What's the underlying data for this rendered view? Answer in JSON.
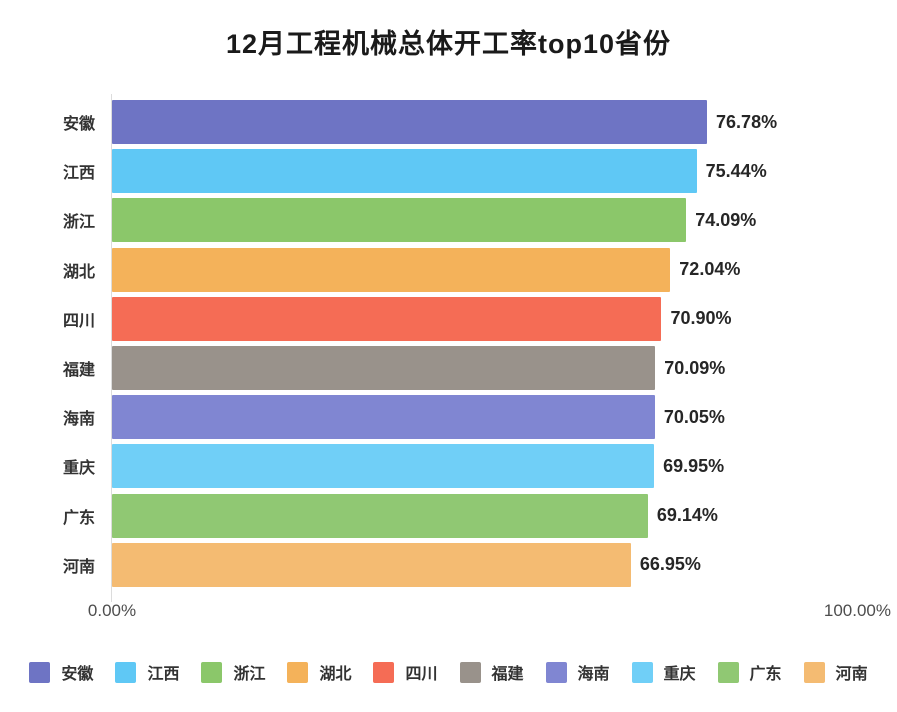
{
  "title": "12月工程机械总体开工率top10省份",
  "chart_data": {
    "type": "bar",
    "orientation": "horizontal",
    "title": "12月工程机械总体开工率top10省份",
    "categories": [
      "安徽",
      "江西",
      "浙江",
      "湖北",
      "四川",
      "福建",
      "海南",
      "重庆",
      "广东",
      "河南"
    ],
    "values": [
      76.78,
      75.44,
      74.09,
      72.04,
      70.9,
      70.09,
      70.05,
      69.95,
      69.14,
      66.95
    ],
    "value_labels": [
      "76.78%",
      "75.44%",
      "74.09%",
      "72.04%",
      "70.90%",
      "70.09%",
      "70.05%",
      "69.95%",
      "69.14%",
      "66.95%"
    ],
    "bar_colors": [
      "#6e74c4",
      "#5fc8f5",
      "#8bc76a",
      "#f4b25a",
      "#f56c55",
      "#99928b",
      "#8086d2",
      "#70cff7",
      "#90c873",
      "#f4bb72"
    ],
    "xlim": [
      0,
      100
    ],
    "x_tick_labels": [
      "0.00%",
      "100.00%"
    ],
    "grid": false,
    "legend_position": "bottom",
    "legend_items": [
      {
        "label": "安徽",
        "color": "#6e74c4"
      },
      {
        "label": "江西",
        "color": "#5fc8f5"
      },
      {
        "label": "浙江",
        "color": "#8bc76a"
      },
      {
        "label": "湖北",
        "color": "#f4b25a"
      },
      {
        "label": "四川",
        "color": "#f56c55"
      },
      {
        "label": "福建",
        "color": "#99928b"
      },
      {
        "label": "海南",
        "color": "#8086d2"
      },
      {
        "label": "重庆",
        "color": "#70cff7"
      },
      {
        "label": "广东",
        "color": "#90c873"
      },
      {
        "label": "河南",
        "color": "#f4bb72"
      }
    ]
  }
}
